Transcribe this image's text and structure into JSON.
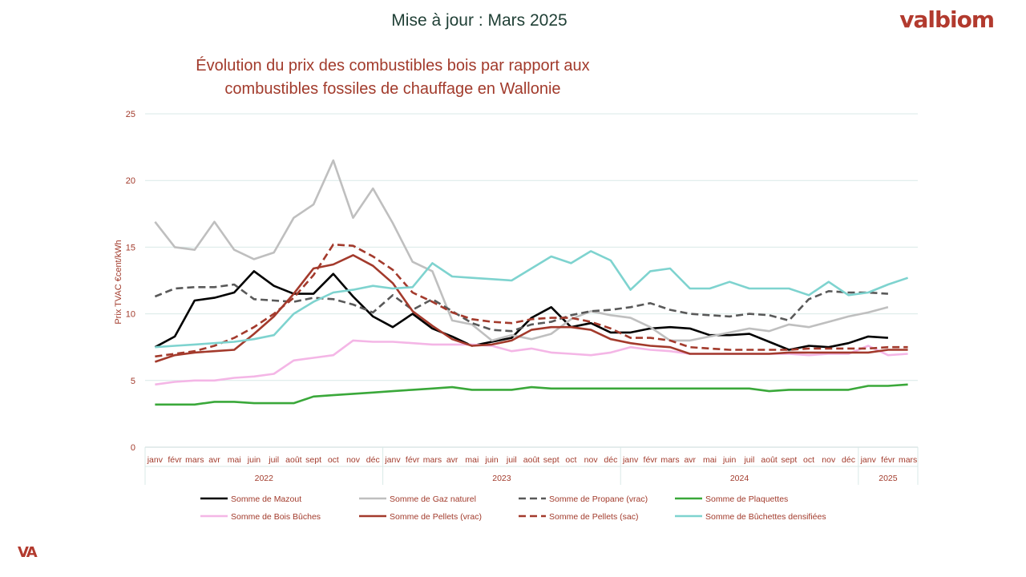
{
  "header": {
    "update_label": "Mise à jour : Mars 2025",
    "brand": "valbiom",
    "footer_logo": "VA"
  },
  "chart_data": {
    "type": "line",
    "title": "Évolution du prix des combustibles bois par rapport aux combustibles fossiles de chauffage en Wallonie",
    "ylabel": "Prix TVAC €cent/kWh",
    "ylim": [
      0,
      25
    ],
    "yticks": [
      0,
      5,
      10,
      15,
      20,
      25
    ],
    "grid": true,
    "legend_position": "bottom",
    "categories": [
      "janv",
      "févr",
      "mars",
      "avr",
      "mai",
      "juin",
      "juil",
      "août",
      "sept",
      "oct",
      "nov",
      "déc",
      "janv",
      "févr",
      "mars",
      "avr",
      "mai",
      "juin",
      "juil",
      "août",
      "sept",
      "oct",
      "nov",
      "déc",
      "janv",
      "févr",
      "mars",
      "avr",
      "mai",
      "juin",
      "juil",
      "août",
      "sept",
      "oct",
      "nov",
      "déc",
      "janv",
      "févr",
      "mars"
    ],
    "year_groups": [
      {
        "label": "2022",
        "start": 0,
        "end": 11
      },
      {
        "label": "2023",
        "start": 12,
        "end": 23
      },
      {
        "label": "2024",
        "start": 24,
        "end": 35
      },
      {
        "label": "2025",
        "start": 36,
        "end": 38
      }
    ],
    "series": [
      {
        "name": "Somme de Mazout",
        "color": "#000000",
        "dash": false,
        "values": [
          7.5,
          8.3,
          11.0,
          11.2,
          11.6,
          13.2,
          12.1,
          11.5,
          11.5,
          13.0,
          11.3,
          9.8,
          9.0,
          10.0,
          8.9,
          8.3,
          7.6,
          7.9,
          8.2,
          9.7,
          10.5,
          9.0,
          9.3,
          8.6,
          8.6,
          8.9,
          9.0,
          8.9,
          8.4,
          8.4,
          8.5,
          7.9,
          7.3,
          7.6,
          7.5,
          7.8,
          8.3,
          8.2,
          null
        ]
      },
      {
        "name": "Somme de Gaz naturel",
        "color": "#bfbfbf",
        "dash": false,
        "values": [
          16.9,
          15.0,
          14.8,
          16.9,
          14.8,
          14.1,
          14.6,
          17.2,
          18.2,
          21.5,
          17.2,
          19.4,
          16.8,
          13.9,
          13.2,
          9.5,
          9.2,
          8.0,
          8.4,
          8.1,
          8.5,
          9.6,
          10.2,
          9.9,
          9.7,
          9.0,
          8.0,
          8.0,
          8.3,
          8.6,
          8.9,
          8.7,
          9.2,
          9.0,
          9.4,
          9.8,
          10.1,
          10.5,
          null
        ]
      },
      {
        "name": "Somme de Propane (vrac)",
        "color": "#595959",
        "dash": true,
        "values": [
          11.3,
          11.9,
          12.0,
          12.0,
          12.2,
          11.1,
          11.0,
          10.9,
          11.2,
          11.1,
          10.7,
          10.1,
          11.4,
          10.3,
          11.1,
          10.2,
          9.3,
          8.8,
          8.7,
          9.2,
          9.4,
          9.9,
          10.2,
          10.3,
          10.5,
          10.8,
          10.3,
          10.0,
          9.9,
          9.8,
          10.0,
          9.9,
          9.5,
          11.1,
          11.7,
          11.6,
          11.6,
          11.5,
          null
        ]
      },
      {
        "name": "Somme de Plaquettes",
        "color": "#3aa83a",
        "dash": false,
        "values": [
          3.2,
          3.2,
          3.2,
          3.4,
          3.4,
          3.3,
          3.3,
          3.3,
          3.8,
          3.9,
          4.0,
          4.1,
          4.2,
          4.3,
          4.4,
          4.5,
          4.3,
          4.3,
          4.3,
          4.5,
          4.4,
          4.4,
          4.4,
          4.4,
          4.4,
          4.4,
          4.4,
          4.4,
          4.4,
          4.4,
          4.4,
          4.2,
          4.3,
          4.3,
          4.3,
          4.3,
          4.6,
          4.6,
          4.7
        ]
      },
      {
        "name": "Somme de Bois Bûches",
        "color": "#f4b6e6",
        "dash": false,
        "values": [
          4.7,
          4.9,
          5.0,
          5.0,
          5.2,
          5.3,
          5.5,
          6.5,
          6.7,
          6.9,
          8.0,
          7.9,
          7.9,
          7.8,
          7.7,
          7.7,
          7.7,
          7.6,
          7.2,
          7.4,
          7.1,
          7.0,
          6.9,
          7.1,
          7.5,
          7.3,
          7.2,
          7.0,
          7.0,
          7.0,
          7.0,
          7.0,
          7.0,
          6.9,
          7.0,
          7.0,
          7.6,
          6.9,
          7.0
        ]
      },
      {
        "name": "Somme de Pellets (vrac)",
        "color": "#a33a2c",
        "dash": false,
        "values": [
          6.4,
          6.9,
          7.1,
          7.2,
          7.3,
          8.5,
          9.8,
          11.5,
          13.4,
          13.7,
          14.4,
          13.6,
          12.3,
          10.2,
          9.1,
          8.1,
          7.6,
          7.7,
          8.0,
          8.8,
          9.0,
          9.0,
          8.8,
          8.1,
          7.8,
          7.6,
          7.5,
          7.0,
          7.0,
          7.0,
          7.0,
          7.0,
          7.1,
          7.1,
          7.1,
          7.1,
          7.1,
          7.3,
          7.3
        ]
      },
      {
        "name": "Somme de Pellets (sac)",
        "color": "#a33a2c",
        "dash": true,
        "values": [
          6.8,
          7.0,
          7.2,
          7.6,
          8.2,
          9.0,
          10.0,
          11.2,
          12.9,
          15.2,
          15.1,
          14.3,
          13.3,
          11.6,
          10.9,
          10.1,
          9.6,
          9.4,
          9.3,
          9.6,
          9.7,
          9.7,
          9.4,
          8.9,
          8.2,
          8.2,
          8.0,
          7.5,
          7.4,
          7.3,
          7.3,
          7.3,
          7.3,
          7.4,
          7.4,
          7.4,
          7.4,
          7.5,
          7.5
        ]
      },
      {
        "name": "Somme de Bûchettes densifiées",
        "color": "#7ed3cf",
        "dash": false,
        "values": [
          7.5,
          7.6,
          7.7,
          7.8,
          7.9,
          8.1,
          8.4,
          10.0,
          10.9,
          11.6,
          11.8,
          12.1,
          11.9,
          12.0,
          13.8,
          12.8,
          12.7,
          12.6,
          12.5,
          13.4,
          14.3,
          13.8,
          14.7,
          14.0,
          11.8,
          13.2,
          13.4,
          11.9,
          11.9,
          12.4,
          11.9,
          11.9,
          11.9,
          11.4,
          12.4,
          11.4,
          11.6,
          12.2,
          12.7
        ]
      }
    ]
  }
}
